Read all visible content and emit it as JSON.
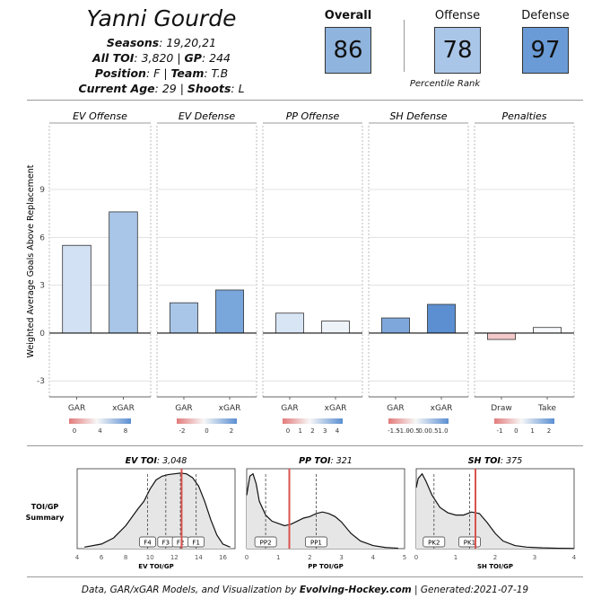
{
  "header": {
    "player_name": "Yanni Gourde",
    "seasons_label": "Seasons",
    "seasons_value": ": 19,20,21",
    "toi_label": "All TOI",
    "toi_value": ": 3,820 | ",
    "gp_label": "GP",
    "gp_value": ": 244",
    "position_label": "Position",
    "position_value": ": F | ",
    "team_label": "Team",
    "team_value": ": T.B",
    "age_label": "Current Age",
    "age_value": ": 29 | ",
    "shoots_label": "Shoots",
    "shoots_value": ": L"
  },
  "ratings": {
    "overall_label": "Overall",
    "overall_value": "86",
    "offense_label": "Offense",
    "offense_value": "78",
    "defense_label": "Defense",
    "defense_value": "97",
    "percentile_caption": "Percentile Rank",
    "overall_color": "#8fb4de",
    "offense_color": "#a9c6e8",
    "defense_color": "#6a9bd6"
  },
  "chart_data": [
    {
      "type": "bar",
      "ylabel": "Weighted Average Goals Above Replacement",
      "ylim": [
        -4,
        13
      ],
      "yticks": [
        -3,
        0,
        3,
        6,
        9
      ],
      "grid": true,
      "panels": [
        {
          "title": "EV Offense",
          "categories": [
            "GAR",
            "xGAR"
          ],
          "values": [
            5.5,
            7.6
          ],
          "colors": [
            "#d2e1f3",
            "#a9c6e8"
          ],
          "legend": {
            "ticks": [
              "0",
              "4",
              "8"
            ]
          }
        },
        {
          "title": "EV Defense",
          "categories": [
            "GAR",
            "xGAR"
          ],
          "values": [
            1.9,
            2.7
          ],
          "colors": [
            "#a9c6e8",
            "#79a6db"
          ],
          "legend": {
            "ticks": [
              "-2",
              "0",
              "2"
            ]
          }
        },
        {
          "title": "PP Offense",
          "categories": [
            "GAR",
            "xGAR"
          ],
          "values": [
            1.25,
            0.75
          ],
          "colors": [
            "#d8e5f5",
            "#eef3fa"
          ],
          "legend": {
            "ticks": [
              "0",
              "1",
              "2",
              "3",
              "4"
            ]
          }
        },
        {
          "title": "SH Defense",
          "categories": [
            "GAR",
            "xGAR"
          ],
          "values": [
            0.95,
            1.8
          ],
          "colors": [
            "#7ea8dc",
            "#5b8fd1"
          ],
          "legend": {
            "ticks": [
              "-1.5",
              "-1.0",
              "-0.5",
              "0.0",
              "0.5",
              "1.0"
            ]
          }
        },
        {
          "title": "Penalties",
          "categories": [
            "Draw",
            "Take"
          ],
          "values": [
            -0.4,
            0.35
          ],
          "colors": [
            "#f4c9c9",
            "#f7f9fc"
          ],
          "legend": {
            "ticks": [
              "-1",
              "0",
              "1",
              "2"
            ]
          }
        }
      ]
    },
    {
      "type": "area",
      "ylabel": "TOI/GP\nSummary",
      "panels": [
        {
          "title_label": "EV TOI",
          "title_value": ": 3,048",
          "xlabel": "EV TOI/GP",
          "xlim": [
            4,
            17
          ],
          "xticks": [
            4,
            6,
            8,
            10,
            12,
            14,
            16
          ],
          "player_value": 12.6,
          "density_x": [
            4.6,
            6,
            7,
            8,
            9,
            9.5,
            10,
            10.5,
            11,
            11.5,
            12,
            12.5,
            13,
            13.5,
            14,
            14.5,
            15,
            15.5,
            16,
            16.6
          ],
          "density_y": [
            0.02,
            0.06,
            0.14,
            0.3,
            0.52,
            0.62,
            0.78,
            0.9,
            0.95,
            0.97,
            0.98,
            0.99,
            0.98,
            0.93,
            0.82,
            0.62,
            0.38,
            0.18,
            0.06,
            0.02
          ],
          "markers": [
            {
              "label": "F4",
              "x": 9.8
            },
            {
              "label": "F3",
              "x": 11.3
            },
            {
              "label": "F2",
              "x": 12.5
            },
            {
              "label": "F1",
              "x": 13.8
            }
          ]
        },
        {
          "title_label": "PP TOI",
          "title_value": ": 321",
          "xlabel": "PP TOI/GP",
          "xlim": [
            0,
            5
          ],
          "xticks": [
            0,
            1,
            2,
            3,
            4,
            5
          ],
          "player_value": 1.35,
          "density_x": [
            0,
            0.1,
            0.2,
            0.3,
            0.4,
            0.6,
            0.8,
            1.0,
            1.2,
            1.4,
            1.6,
            1.8,
            2.0,
            2.2,
            2.4,
            2.6,
            2.8,
            3.0,
            3.3,
            3.6,
            4.0,
            4.4,
            4.8
          ],
          "density_y": [
            0.7,
            0.95,
            0.98,
            0.85,
            0.62,
            0.44,
            0.36,
            0.33,
            0.3,
            0.32,
            0.36,
            0.4,
            0.42,
            0.46,
            0.48,
            0.46,
            0.42,
            0.35,
            0.2,
            0.1,
            0.04,
            0.015,
            0.005
          ],
          "markers": [
            {
              "label": "PP2",
              "x": 0.6
            },
            {
              "label": "PP1",
              "x": 2.2
            }
          ]
        },
        {
          "title_label": "SH TOI",
          "title_value": ": 375",
          "xlabel": "SH TOI/GP",
          "xlim": [
            0,
            4
          ],
          "xticks": [
            0,
            1,
            2,
            3,
            4
          ],
          "player_value": 1.5,
          "density_x": [
            0,
            0.05,
            0.15,
            0.25,
            0.4,
            0.6,
            0.8,
            1.0,
            1.2,
            1.4,
            1.6,
            1.8,
            2.0,
            2.2,
            2.5,
            2.8,
            3.2,
            3.6,
            4.0
          ],
          "density_y": [
            0.8,
            0.92,
            0.98,
            0.88,
            0.7,
            0.54,
            0.47,
            0.44,
            0.44,
            0.48,
            0.46,
            0.34,
            0.2,
            0.1,
            0.04,
            0.02,
            0.01,
            0.005,
            0.002
          ],
          "markers": [
            {
              "label": "PK2",
              "x": 0.45
            },
            {
              "label": "PK1",
              "x": 1.35
            }
          ]
        }
      ]
    }
  ],
  "footer": {
    "prefix": "Data, GAR/xGAR Models, and Visualization by ",
    "site": "Evolving-Hockey.com",
    "suffix": " | Generated:2021-07-19"
  }
}
